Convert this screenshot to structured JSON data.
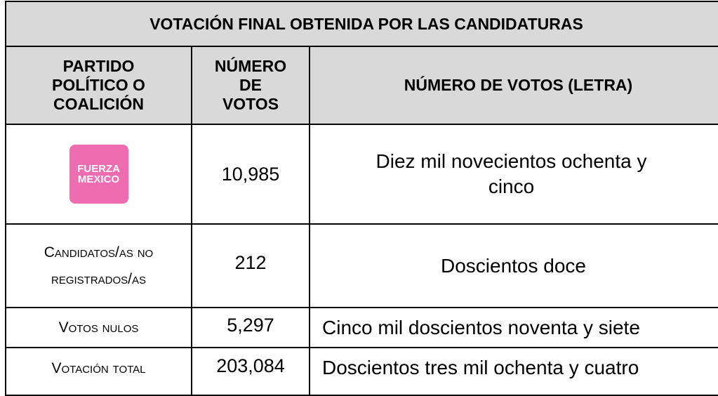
{
  "header": {
    "title": "VOTACIÓN FINAL OBTENIDA POR LAS CANDIDATURAS"
  },
  "table": {
    "columns": [
      "PARTIDO POLÍTICO O COALICIÓN",
      "NÚMERO DE VOTOS",
      "NÚMERO DE VOTOS (LETRA)"
    ],
    "rows": [
      {
        "logo": [
          "FUERZA",
          "MEXICO"
        ],
        "votes": "10,985",
        "words": "Diez mil novecientos ochenta y cinco"
      },
      {
        "party": "Candidatos/as no registrados/as",
        "votes": "212",
        "words": "Doscientos doce"
      },
      {
        "party": "Votos nulos",
        "votes": "5,297",
        "words": "Cinco mil doscientos noventa y siete"
      },
      {
        "party": "Votación total",
        "votes": "203,084",
        "words": "Doscientos tres mil ochenta y cuatro"
      }
    ]
  }
}
